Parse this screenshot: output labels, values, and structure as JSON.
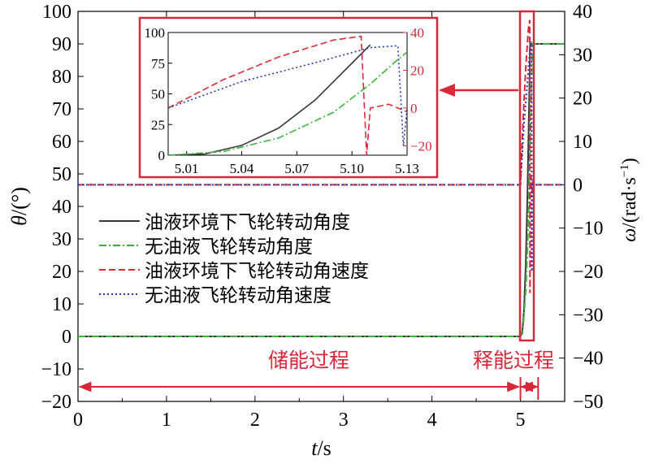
{
  "chart_data": {
    "type": "line",
    "main": {
      "xlabel_italic": "t",
      "xlabel_unit": "/s",
      "ylabel_left_italic": "θ",
      "ylabel_left_unit": "/(°)",
      "ylabel_right_italic": "ω",
      "ylabel_right_unit": "/(rad·s",
      "ylabel_right_sup": "−1",
      "ylabel_right_close": ")",
      "xlim": [
        0,
        5.5
      ],
      "ylim_left": [
        -20,
        100
      ],
      "ylim_right": [
        -50,
        40
      ],
      "x_ticks": [
        "0",
        "1",
        "2",
        "3",
        "4",
        "5"
      ],
      "y_left_ticks": [
        "−20",
        "−10",
        "0",
        "10",
        "20",
        "30",
        "40",
        "50",
        "60",
        "70",
        "80",
        "90",
        "100"
      ],
      "y_right_ticks": [
        "−50",
        "−40",
        "−30",
        "−20",
        "−10",
        "0",
        "10",
        "20",
        "30",
        "40"
      ],
      "grid": false,
      "legend_position": "middle-left"
    },
    "series": [
      {
        "name": "油液环境下飞轮转动角度",
        "axis": "left",
        "color": "#3a3a3a",
        "style": "solid",
        "points": [
          [
            0,
            0
          ],
          [
            5.0,
            0
          ],
          [
            5.02,
            1
          ],
          [
            5.04,
            8
          ],
          [
            5.06,
            22
          ],
          [
            5.08,
            45
          ],
          [
            5.1,
            75
          ],
          [
            5.11,
            90
          ],
          [
            5.5,
            90
          ]
        ]
      },
      {
        "name": "无油液飞轮转动角度",
        "axis": "left",
        "color": "#3cb43c",
        "style": "dashdot",
        "points": [
          [
            0,
            0
          ],
          [
            5.0,
            0
          ],
          [
            5.03,
            3
          ],
          [
            5.06,
            14
          ],
          [
            5.09,
            35
          ],
          [
            5.11,
            58
          ],
          [
            5.125,
            78
          ],
          [
            5.135,
            90
          ],
          [
            5.5,
            90
          ]
        ]
      },
      {
        "name": "油液环境下飞轮转动角速度",
        "axis": "right",
        "color": "#e0283c",
        "style": "dashed",
        "points": [
          [
            0,
            0
          ],
          [
            5.0,
            0
          ],
          [
            5.03,
            15
          ],
          [
            5.06,
            27
          ],
          [
            5.09,
            36
          ],
          [
            5.105,
            38
          ],
          [
            5.108,
            -25
          ],
          [
            5.11,
            0
          ],
          [
            5.12,
            2
          ],
          [
            5.13,
            -2
          ],
          [
            5.14,
            1
          ],
          [
            5.16,
            0
          ],
          [
            5.5,
            0
          ]
        ]
      },
      {
        "name": "无油液飞轮转动角速度",
        "axis": "right",
        "color": "#2838b4",
        "style": "dotted",
        "points": [
          [
            0,
            0
          ],
          [
            5.0,
            0
          ],
          [
            5.04,
            14
          ],
          [
            5.08,
            24
          ],
          [
            5.11,
            32
          ],
          [
            5.125,
            33
          ],
          [
            5.128,
            -20
          ],
          [
            5.13,
            0
          ],
          [
            5.14,
            0
          ],
          [
            5.5,
            0
          ]
        ]
      }
    ],
    "inset": {
      "xlim": [
        5.0,
        5.13
      ],
      "ylim_left": [
        0,
        100
      ],
      "ylim_right": [
        -25,
        40
      ],
      "x_ticks": [
        "5.01",
        "5.04",
        "5.07",
        "5.10",
        "5.13"
      ],
      "y_left_ticks": [
        "0",
        "25",
        "50",
        "75",
        "100"
      ],
      "y_right_ticks": [
        "−20",
        "0",
        "20",
        "40"
      ]
    },
    "annotations": {
      "storage": "储能过程",
      "release": "释能过程"
    },
    "colors": {
      "accent": "#d9273a",
      "box": "#d9273a"
    }
  }
}
